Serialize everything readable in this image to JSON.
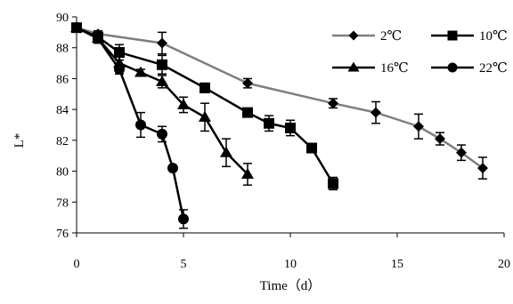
{
  "chart_data": {
    "type": "line",
    "title": "",
    "xlabel": "Time（d）",
    "ylabel": "L*",
    "xlim": [
      0,
      20
    ],
    "ylim": [
      76,
      90
    ],
    "x_ticks": [
      0,
      5,
      10,
      15,
      20
    ],
    "y_ticks": [
      76,
      78,
      80,
      82,
      84,
      86,
      88,
      90
    ],
    "grid": false,
    "legend_position": "top-right",
    "series": [
      {
        "name": "2℃",
        "marker": "diamond",
        "line_color": "#7f7f7f",
        "marker_color": "#000000",
        "x": [
          0,
          1,
          4,
          8,
          12,
          14,
          16,
          17,
          18,
          19
        ],
        "y": [
          89.3,
          88.9,
          88.3,
          85.7,
          84.4,
          83.8,
          82.9,
          82.1,
          81.2,
          80.2
        ],
        "error": [
          0.2,
          0.2,
          0.7,
          0.3,
          0.3,
          0.7,
          0.8,
          0.4,
          0.5,
          0.7
        ]
      },
      {
        "name": "10℃",
        "marker": "square",
        "line_color": "#000000",
        "marker_color": "#000000",
        "x": [
          0,
          1,
          2,
          4,
          6,
          8,
          9,
          10,
          11,
          12
        ],
        "y": [
          89.3,
          88.7,
          87.7,
          86.9,
          85.4,
          83.8,
          83.1,
          82.8,
          81.5,
          79.2
        ],
        "error": [
          0.2,
          0.2,
          0.5,
          0.6,
          0.3,
          0.2,
          0.5,
          0.5,
          0.2,
          0.4
        ]
      },
      {
        "name": "16℃",
        "marker": "triangle",
        "line_color": "#000000",
        "marker_color": "#000000",
        "x": [
          0,
          1,
          2,
          3,
          4,
          5,
          6,
          7,
          8
        ],
        "y": [
          89.3,
          88.6,
          87.0,
          86.4,
          85.8,
          84.3,
          83.5,
          81.2,
          79.8
        ],
        "error": [
          0.2,
          0.3,
          0.4,
          0.2,
          0.4,
          0.5,
          0.9,
          0.9,
          0.7
        ]
      },
      {
        "name": "22℃",
        "marker": "circle",
        "line_color": "#000000",
        "marker_color": "#000000",
        "x": [
          0,
          1,
          2,
          3,
          4,
          4.5,
          5
        ],
        "y": [
          89.3,
          88.6,
          86.6,
          83.0,
          82.4,
          80.2,
          76.9
        ],
        "error": [
          0.2,
          0.3,
          0.3,
          0.8,
          0.5,
          0.0,
          0.6
        ]
      }
    ]
  }
}
